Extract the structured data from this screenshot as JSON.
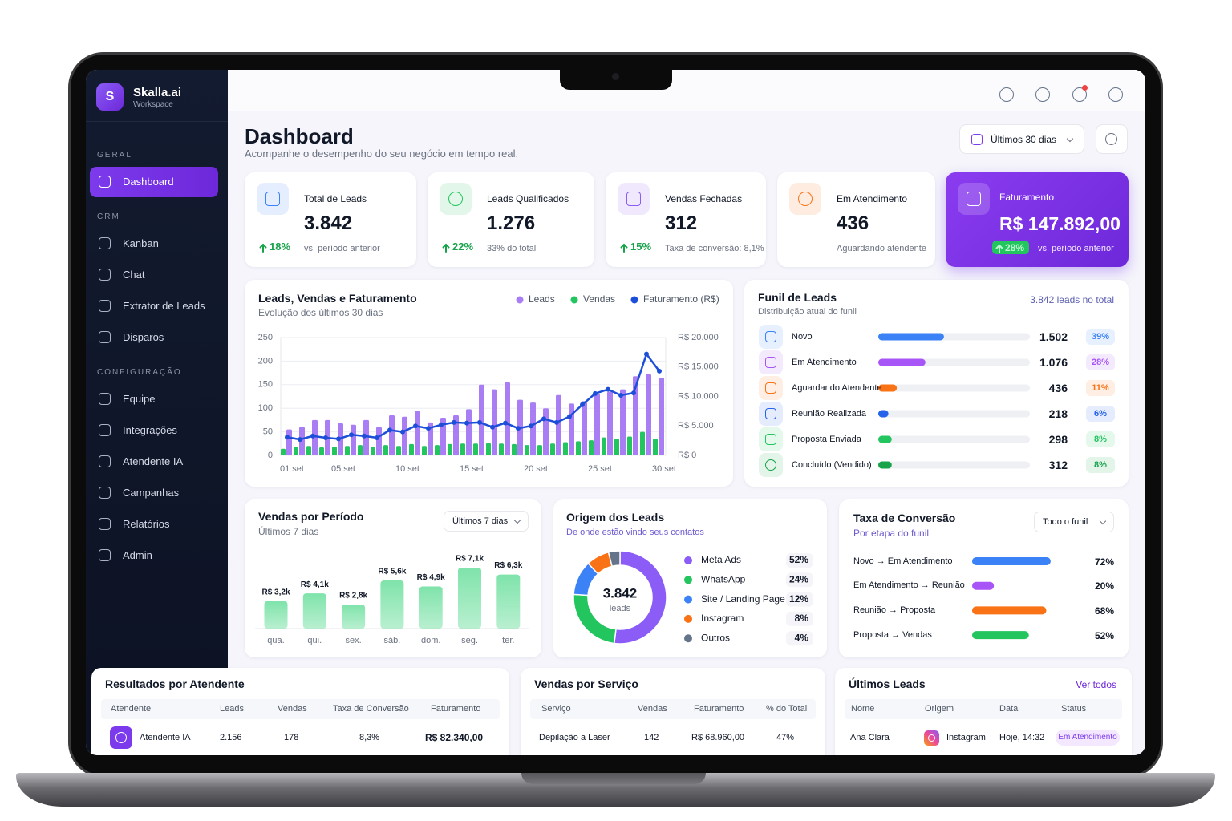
{
  "sidebar": {
    "logo": "S",
    "brand": "Skalla.ai",
    "workspace": "Workspace",
    "sections": [
      {
        "title": "GERAL",
        "items": [
          "Dashboard"
        ]
      },
      {
        "title": "CRM",
        "items": [
          "Kanban",
          "Chat",
          "Extrator de Leads",
          "Disparos"
        ]
      },
      {
        "title": "CONFIGURAÇÃO",
        "items": [
          "Equipe",
          "Integrações",
          "Atendente IA",
          "Campanhas",
          "Relatórios",
          "Admin"
        ]
      }
    ]
  },
  "header": {
    "title": "Dashboard",
    "subtitle": "Acompanhe o desempenho do seu negócio em tempo real.",
    "range": "Últimos 30 dias"
  },
  "kpis": [
    {
      "label": "Total de Leads",
      "value": "3.842",
      "change": "18%",
      "note": "vs. período anterior",
      "color": "#3b82f6"
    },
    {
      "label": "Leads Qualificados",
      "value": "1.276",
      "change": "22%",
      "note": "33% do total",
      "color": "#22c55e"
    },
    {
      "label": "Vendas Fechadas",
      "value": "312",
      "change": "15%",
      "note": "Taxa de conversão: 8,1%",
      "color": "#8b5cf6"
    },
    {
      "label": "Em Atendimento",
      "value": "436",
      "note": "Aguardando atendente",
      "color": "#f97316"
    },
    {
      "label": "Faturamento",
      "value": "R$ 147.892,00",
      "change": "28%",
      "note": "vs. período anterior",
      "color": "#ffffff",
      "highlight": true
    }
  ],
  "chart_data": [
    {
      "type": "bar-line",
      "title": "Leads, Vendas e Faturamento",
      "subtitle": "Evolução dos últimos 30 dias",
      "categories": [
        "01 set",
        null,
        null,
        null,
        "05 set",
        null,
        null,
        null,
        null,
        "10 set",
        null,
        null,
        null,
        null,
        "15 set",
        null,
        null,
        null,
        null,
        "20 set",
        null,
        null,
        null,
        null,
        "25 set",
        null,
        null,
        null,
        null,
        "30 set"
      ],
      "series": [
        {
          "name": "Leads",
          "color": "#a97ef4",
          "values": [
            55,
            60,
            75,
            75,
            68,
            65,
            75,
            60,
            85,
            82,
            95,
            70,
            80,
            85,
            98,
            150,
            140,
            155,
            118,
            112,
            100,
            128,
            110,
            115,
            130,
            135,
            140,
            168,
            172,
            165
          ]
        },
        {
          "name": "Vendas",
          "color": "#22c55e",
          "values": [
            14,
            18,
            20,
            17,
            18,
            20,
            22,
            18,
            22,
            20,
            24,
            20,
            22,
            24,
            25,
            25,
            26,
            25,
            24,
            22,
            22,
            25,
            28,
            30,
            32,
            38,
            35,
            40,
            50,
            35
          ]
        },
        {
          "name": "Faturamento (R$)",
          "color": "#1d4ed8",
          "type": "line",
          "axis": "y2",
          "values": [
            3100,
            2700,
            3300,
            3000,
            2800,
            3500,
            3300,
            3000,
            4300,
            4000,
            5000,
            4600,
            5200,
            5600,
            5500,
            5600,
            4800,
            5500,
            4600,
            5000,
            6200,
            5600,
            6600,
            8600,
            10500,
            11200,
            10200,
            10600,
            17200,
            14300
          ]
        }
      ],
      "ylim": [
        0,
        250
      ],
      "yticks": [
        0,
        50,
        100,
        150,
        200,
        250
      ],
      "y2lim": [
        0,
        20000
      ],
      "y2ticks": [
        {
          "value": 0,
          "label": "R$ 0"
        },
        {
          "value": 5000,
          "label": "R$ 5.000"
        },
        {
          "value": 10000,
          "label": "R$ 10.000"
        },
        {
          "value": 15000,
          "label": "R$ 15.000"
        },
        {
          "value": 20000,
          "label": "R$ 20.000"
        }
      ],
      "grid": true
    },
    {
      "type": "bar",
      "title": "Vendas por Período",
      "subtitle": "Últimos 7 dias",
      "filter": "Últimos 7 dias",
      "categories": [
        "qua.",
        "qui.",
        "sex.",
        "sáb.",
        "dom.",
        "seg.",
        "ter."
      ],
      "values": [
        3200,
        4100,
        2800,
        5600,
        4900,
        7100,
        6300
      ],
      "value_labels": [
        "R$ 3,2k",
        "R$ 4,1k",
        "R$ 2,8k",
        "R$ 5,6k",
        "R$ 4,9k",
        "R$ 7,1k",
        "R$ 6,3k"
      ],
      "color": "#7fe3aa"
    },
    {
      "type": "donut",
      "title": "Origem dos Leads",
      "subtitle": "De onde estão vindo seus contatos",
      "center_value": "3.842",
      "center_label": "leads",
      "categories": [
        "Meta Ads",
        "WhatsApp",
        "Site / Landing Page",
        "Instagram",
        "Outros"
      ],
      "values": [
        52,
        24,
        12,
        8,
        4
      ],
      "value_labels": [
        "52%",
        "24%",
        "12%",
        "8%",
        "4%"
      ],
      "colors": [
        "#8b5cf6",
        "#22c55e",
        "#3b82f6",
        "#f97316",
        "#64748b"
      ]
    }
  ],
  "funnel": {
    "title": "Funil de Leads",
    "subtitle": "Distribuição atual do funil",
    "total": "3.842 leads no total",
    "stages": [
      {
        "name": "Novo",
        "value": "1.502",
        "percent": 39,
        "percent_label": "39%",
        "color": "#3b82f6"
      },
      {
        "name": "Em Atendimento",
        "value": "1.076",
        "percent": 28,
        "percent_label": "28%",
        "color": "#a855f7"
      },
      {
        "name": "Aguardando Atendente",
        "value": "436",
        "percent": 11,
        "percent_label": "11%",
        "color": "#f97316"
      },
      {
        "name": "Reunião Realizada",
        "value": "218",
        "percent": 6,
        "percent_label": "6%",
        "color": "#2563eb"
      },
      {
        "name": "Proposta Enviada",
        "value": "298",
        "percent": 8,
        "percent_label": "8%",
        "color": "#22c55e"
      },
      {
        "name": "Concluído (Vendido)",
        "value": "312",
        "percent": 8,
        "percent_label": "8%",
        "color": "#16a34a"
      }
    ]
  },
  "conversion": {
    "title": "Taxa de Conversão",
    "subtitle": "Por etapa do funil",
    "filter": "Todo o funil",
    "steps": [
      {
        "name": "Novo → Em Atendimento",
        "value": 72,
        "value_label": "72%",
        "color": "#3b82f6"
      },
      {
        "name": "Em Atendimento → Reunião",
        "value": 20,
        "value_label": "20%",
        "color": "#a855f7"
      },
      {
        "name": "Reunião → Proposta",
        "value": 68,
        "value_label": "68%",
        "color": "#f97316"
      },
      {
        "name": "Proposta → Vendas",
        "value": 52,
        "value_label": "52%",
        "color": "#22c55e"
      }
    ]
  },
  "agents_table": {
    "title": "Resultados por Atendente",
    "columns": [
      "Atendente",
      "Leads",
      "Vendas",
      "Taxa de Conversão",
      "Faturamento"
    ],
    "rows": [
      [
        "Atendente IA",
        "2.156",
        "178",
        "8,3%",
        "R$ 82.340,00"
      ]
    ]
  },
  "services_table": {
    "title": "Vendas por Serviço",
    "columns": [
      "Serviço",
      "Vendas",
      "Faturamento",
      "% do Total"
    ],
    "rows": [
      [
        "Depilação a Laser",
        "142",
        "R$ 68.960,00",
        "47%"
      ]
    ]
  },
  "leads_table": {
    "title": "Últimos Leads",
    "action": "Ver todos",
    "columns": [
      "Nome",
      "Origem",
      "Data",
      "Status"
    ],
    "rows": [
      [
        "Ana Clara",
        "Instagram",
        "Hoje, 14:32",
        "Em Atendimento"
      ]
    ]
  }
}
